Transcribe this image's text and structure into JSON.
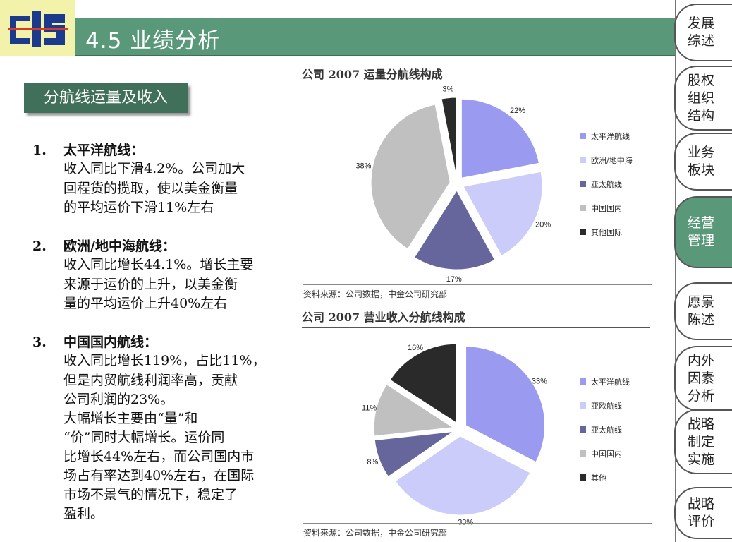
{
  "header": {
    "title": "4.5 业绩分析"
  },
  "sidebar": {
    "items": [
      {
        "label": "发展综述",
        "active": false
      },
      {
        "label": "股权组织结构",
        "active": false
      },
      {
        "label": "业务板块",
        "active": false
      },
      {
        "label": "经营管理",
        "active": true
      },
      {
        "label": "愿景陈述",
        "active": false
      },
      {
        "label": "内外因素分析",
        "active": false
      },
      {
        "label": "战略制定实施",
        "active": false
      },
      {
        "label": "战略评价",
        "active": false
      }
    ]
  },
  "section_label": "分航线运量及收入",
  "text_lines": [
    {
      "num": "1.",
      "text": "太平洋航线："
    },
    {
      "text": "收入同比下滑4.2%。公司加大"
    },
    {
      "text": "回程货的揽取，使以美金衡量"
    },
    {
      "text": "的平均运价下滑11%左右"
    },
    {
      "num": "2.",
      "text": "欧洲/地中海航线："
    },
    {
      "text": "收入同比增长44.1%。增长主要"
    },
    {
      "text": "来源于运价的上升，以美金衡"
    },
    {
      "text": "量的平均运价上升40%左右"
    },
    {
      "num": "3.",
      "text": "中国国内航线："
    },
    {
      "text": "收入同比增长119%，占比11%，"
    },
    {
      "text": "但是内贸航线利润率高，贡献"
    },
    {
      "text": "公司利润的23%。"
    },
    {
      "text": "大幅增长主要由“量”和"
    },
    {
      "text": "“价”同时大幅增长。运价同"
    },
    {
      "text": "比增长44%左右，而公司国内市"
    },
    {
      "text": "场占有率达到40%左右，在国际"
    },
    {
      "text": "市场不景气的情况下，稳定了"
    },
    {
      "text": "盈利。"
    }
  ],
  "colors": {
    "title_bar": "#5a987a",
    "section_label": "#41705a",
    "slices": [
      "#9a9af0",
      "#ccccfa",
      "#66669c",
      "#c0c0c0",
      "#2a2a2a"
    ]
  },
  "chart_data": [
    {
      "type": "pie",
      "title": "公司 2007 运量分航线构成",
      "source": "资料来源：公司数据，中金公司研究部",
      "legend_position": "right",
      "categories": [
        "太平洋航线",
        "欧洲/地中海",
        "亚太航线",
        "中国国内",
        "其他国际"
      ],
      "values": [
        22,
        20,
        17,
        38,
        3
      ],
      "labels": [
        "22%",
        "20%",
        "17%",
        "38%",
        "3%"
      ]
    },
    {
      "type": "pie",
      "title": "公司 2007 营业收入分航线构成",
      "source": "资料来源：公司数据，中金公司研究部",
      "legend_position": "right",
      "categories": [
        "太平洋航线",
        "亚欧航线",
        "亚太航线",
        "中国国内",
        "其他"
      ],
      "values": [
        33,
        33,
        8,
        11,
        16
      ],
      "labels": [
        "33%",
        "33%",
        "8%",
        "11%",
        "16%"
      ]
    }
  ]
}
